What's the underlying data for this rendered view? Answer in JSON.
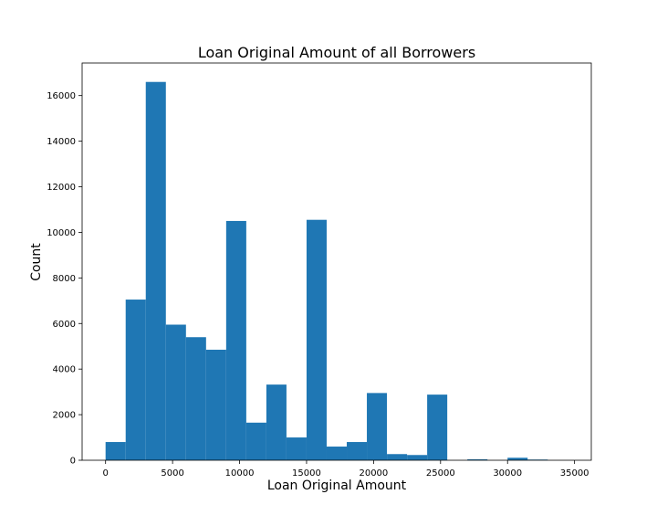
{
  "chart_data": {
    "type": "bar",
    "title": "Loan Original Amount of all Borrowers",
    "xlabel": "Loan Original Amount",
    "ylabel": "Count",
    "bin_width": 1500,
    "bins": [
      {
        "start": 0,
        "end": 1500,
        "count": 800
      },
      {
        "start": 1500,
        "end": 3000,
        "count": 7050
      },
      {
        "start": 3000,
        "end": 4500,
        "count": 16600
      },
      {
        "start": 4500,
        "end": 6000,
        "count": 5950
      },
      {
        "start": 6000,
        "end": 7500,
        "count": 5400
      },
      {
        "start": 7500,
        "end": 9000,
        "count": 4850
      },
      {
        "start": 9000,
        "end": 10500,
        "count": 10500
      },
      {
        "start": 10500,
        "end": 12000,
        "count": 1650
      },
      {
        "start": 12000,
        "end": 13500,
        "count": 3320
      },
      {
        "start": 13500,
        "end": 15000,
        "count": 1000
      },
      {
        "start": 15000,
        "end": 16500,
        "count": 10550
      },
      {
        "start": 16500,
        "end": 18000,
        "count": 600
      },
      {
        "start": 18000,
        "end": 19500,
        "count": 800
      },
      {
        "start": 19500,
        "end": 21000,
        "count": 2950
      },
      {
        "start": 21000,
        "end": 22500,
        "count": 270
      },
      {
        "start": 22500,
        "end": 24000,
        "count": 230
      },
      {
        "start": 24000,
        "end": 25500,
        "count": 2880
      },
      {
        "start": 25500,
        "end": 27000,
        "count": 0
      },
      {
        "start": 27000,
        "end": 28500,
        "count": 40
      },
      {
        "start": 28500,
        "end": 30000,
        "count": 0
      },
      {
        "start": 30000,
        "end": 31500,
        "count": 110
      },
      {
        "start": 31500,
        "end": 33000,
        "count": 30
      },
      {
        "start": 33000,
        "end": 34500,
        "count": 0
      }
    ],
    "xlim": [
      -1750,
      36250
    ],
    "ylim": [
      0,
      17430
    ],
    "xticks": [
      0,
      5000,
      10000,
      15000,
      20000,
      25000,
      30000,
      35000
    ],
    "yticks": [
      0,
      2000,
      4000,
      6000,
      8000,
      10000,
      12000,
      14000,
      16000
    ],
    "bar_color": "#1f77b4",
    "grid": false
  }
}
